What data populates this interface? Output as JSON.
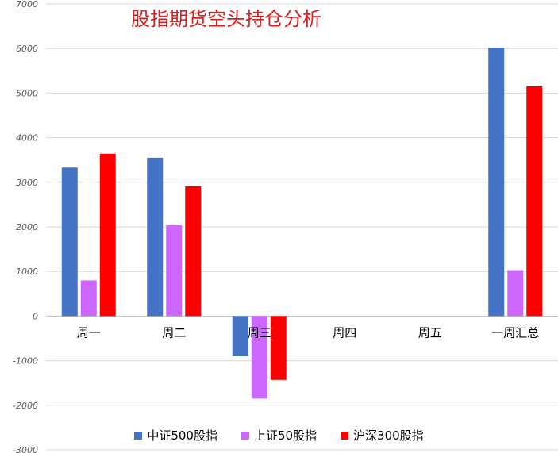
{
  "chart_data": {
    "type": "bar",
    "title": "股指期货空头持仓分析",
    "xlabel": "",
    "ylabel": "",
    "categories": [
      "周一",
      "周二",
      "周三",
      "周四",
      "周五",
      "一周汇总"
    ],
    "series": [
      {
        "name": "中证500股指",
        "color": "#4472c4",
        "values": [
          3330,
          3550,
          -900,
          null,
          null,
          6020
        ]
      },
      {
        "name": "上证50股指",
        "color": "#cc66ff",
        "values": [
          800,
          2040,
          -1850,
          null,
          null,
          1030
        ]
      },
      {
        "name": "沪深300股指",
        "color": "#ff0000",
        "values": [
          3640,
          2910,
          -1430,
          null,
          null,
          5150
        ]
      }
    ],
    "ylim": [
      -3000,
      7000
    ],
    "yticks": [
      -3000,
      -2000,
      -1000,
      0,
      1000,
      2000,
      3000,
      4000,
      5000,
      6000,
      7000
    ],
    "grid": true,
    "legend_position": "bottom"
  }
}
